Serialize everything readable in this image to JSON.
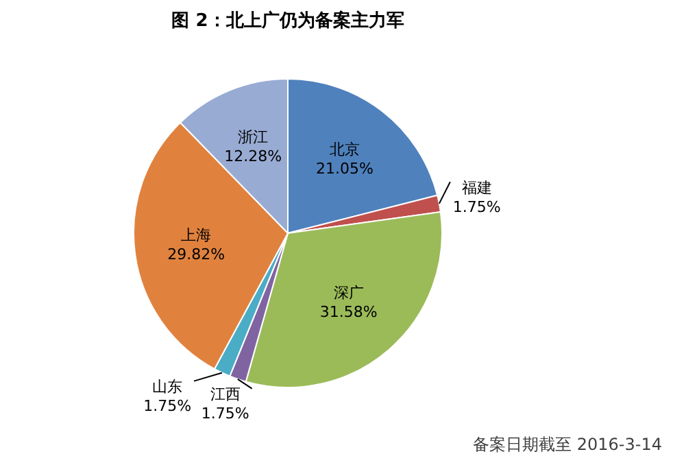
{
  "chart_data": {
    "type": "pie",
    "title": "图 2：北上广仍为备案主力军",
    "categories": [
      "北京",
      "福建",
      "深广",
      "江西",
      "山东",
      "上海",
      "浙江"
    ],
    "values": [
      21.05,
      1.75,
      31.58,
      1.75,
      1.75,
      29.82,
      12.28
    ],
    "colors": [
      "#4f81bd",
      "#c0504d",
      "#9bbb59",
      "#8064a2",
      "#4bacc6",
      "#e0823e",
      "#98abd3"
    ],
    "value_labels": [
      "21.05%",
      "1.75%",
      "31.58%",
      "1.75%",
      "1.75%",
      "29.82%",
      "12.28%"
    ],
    "legend": false,
    "annotations": [
      "备案日期截至 2016-3-14"
    ]
  }
}
